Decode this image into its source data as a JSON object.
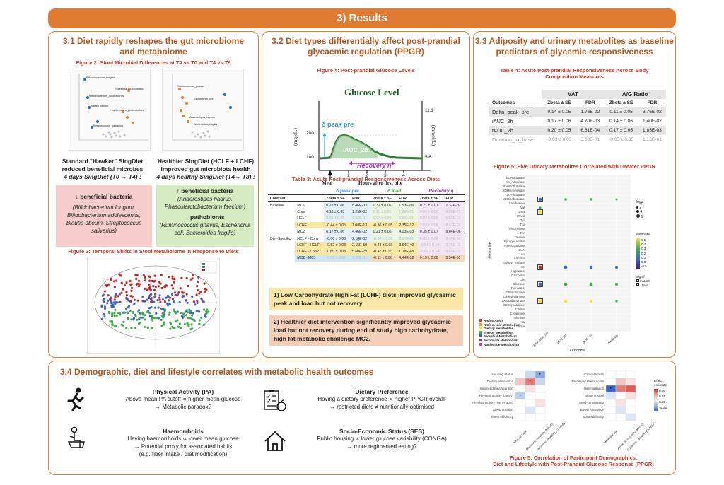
{
  "banner": {
    "title": "3) Results"
  },
  "s31": {
    "title_l1": "3.1 Diet rapidly reshapes the gut microbiome",
    "title_l2": "and metabolome",
    "fig2_title": "Figure 2: Stool Microbial Differences at T4 vs T0 and T4 vs T8",
    "left_heading_l1": "Standard \"Hawker\" SingDiet",
    "left_heading_l2": "reduced beneficial microbes",
    "left_heading_l3": "4 days SingDiet (T0 → T4) :",
    "right_heading_l1": "Healthier SingDiet (HCLF + LCHF)",
    "right_heading_l2": "improved gut microbiota health",
    "right_heading_l3": "4 days healthy SingDiet (T4→ T8) :",
    "red_box_head": "↓ beneficial bacteria",
    "red_box_body": "(Bifidobacterium longum, Bifidobacterium adolescentis, Blautia obeum, Streptococcus salivarius)",
    "green_box_head1": "↑ beneficial bacteria",
    "green_box_body1": "(Anaerostipes hadrus, Phascolarctobacterium faecium)",
    "green_box_head2": "↓ pathobionts",
    "green_box_body2": "(Ruminococcus gnavus, Escherichia coli, Bacteroides fragilis)",
    "fig3_title": "Figure 3: Temporal Shifts in Stool Metabolome in Response to Diets",
    "volcano_left_labels": [
      "Bifidobacterium_longum",
      "Roseburia_inulinivorans",
      "Bifidobacterium_adolescentis",
      "Blautia_obeum",
      "Lachnospira_pectinoschiza",
      "Streptococcus_salivarius"
    ],
    "volcano_right_labels": [
      "Ruminococcus_gnavus",
      "Escherichia_coli",
      "Anaerostipes_hadrus",
      "Bacteroides_fragilis"
    ]
  },
  "s32": {
    "title_l1": "3.2 Diet types differentially affect post-prandial",
    "title_l2": "glycaemic regulation (PPGR)",
    "fig4_title": "Figure 4: Post-prandial Glucose Levels",
    "glucose_title": "Glucose Level",
    "peak_label": "δ peak pre",
    "auc_label": "iAUC_2h",
    "recovery_label": "Recovery η",
    "y_left": "(mg/dL)",
    "y_right": "(mmol/L)",
    "y_ticks_left": [
      "200",
      "100"
    ],
    "y_ticks_right": [
      "11.1",
      "5.6"
    ],
    "x_ticks": [
      "1",
      "2",
      "3",
      "4"
    ],
    "meal_label": "Meal",
    "x_label": "Hours after first bite",
    "table3_title": "Table 3: Acute Post-prandial Responsiveness Across Diets",
    "table3_groups": [
      "δ peak pre",
      "δ load",
      "Recovery η"
    ],
    "table3_cols": [
      "Contrast",
      "",
      "Zbeta ± SE",
      "FDR",
      "Zbeta ± SE",
      "FDR",
      "Zbeta ± SE",
      "FDR"
    ],
    "table3_rows": [
      [
        "Baseline",
        "MC1",
        "0.22 ± 0.06",
        "5.46E-03",
        "0.32 ± 0.06",
        "1.53E-06",
        "0.21 ± 0.07",
        "1.37E-02"
      ],
      [
        "",
        "Conv",
        "0.16 ± 0.05",
        "1.25E-02",
        "0.11 ± 0.05",
        "1.89E-01",
        "0.04 ± 0.06",
        "8.86E-01"
      ],
      [
        "",
        "HCLF",
        "0.06 ± 0.05",
        "3.50E-01",
        "0.07 ± 0.05",
        "3.21E-01",
        "0.07 ± 0.06",
        "5.67E-01"
      ],
      [
        "",
        "LCHF",
        "-0.44 ± 0.05",
        "1.08E-13",
        "-0.36 ± 0.05",
        "2.35E-12",
        "0.03 ± 0.06",
        "8.67E-01"
      ],
      [
        "",
        "MC2",
        "0.17 ± 0.06",
        "4.46E-02",
        "0.21 ± 0.06",
        "4.03E-03",
        "0.35 ± 0.07",
        "9.64E-06"
      ],
      [
        "Diet-Specific",
        "HCLF - Conv",
        "-0.08 ± 0.03",
        "2.18E-02",
        "-0.04 ± 0.03",
        "2.17E-01",
        "0.03 ± 0.04",
        "3.42E-01"
      ],
      [
        "",
        "LCHF - HCLF",
        "-0.52 ± 0.03",
        "2.15E-59",
        "-0.43 ± 0.03",
        "3.64E-40",
        "-0.04 ± 0.04",
        "3.75E-01"
      ],
      [
        "",
        "LCHF - Conv",
        "-0.60 ± 0.03",
        "5.60E-79",
        "-0.47 ± 0.03",
        "1.18E-48",
        "-0.01 ± 0.04",
        "9.65E-01"
      ],
      [
        "",
        "MC2 - MC1",
        "-0.05 ± 0.04",
        "2.37E-01",
        "-0.11 ± 0.06",
        "4.44E-02",
        "0.13 ± 0.06",
        "3.54E-02"
      ]
    ],
    "callout1": "1) Low Carbohydrate High Fat (LCHF) diets improved glycaemic peak and load but not recovery.",
    "callout2": "2) Healthier diet intervention significantly improved glycaemic load but not recovery during end of study high carbohydrate, high fat metabolic challenge MC2."
  },
  "s33": {
    "title_l1": "3.3 Adiposity and urinary metabolites as baseline",
    "title_l2": "predictors of glycemic responsiveness",
    "table4_title_l1": "Table 4: Acute Post-prandial Responsiveness Across Body",
    "table4_title_l2": "Composition Measures",
    "table4_groups": [
      "VAT",
      "A/G Ratio"
    ],
    "table4_cols": [
      "Outcomes",
      "Zbeta ± SE",
      "FDR",
      "Zbeta ± SE",
      "FDR"
    ],
    "table4_rows": [
      [
        "Delta_peak_pre",
        "0.14 ± 0.05",
        "1.76E-02",
        "0.11 ± 0.05",
        "3.76E-02"
      ],
      [
        "iAUC_2h",
        "0.17 ± 0.06",
        "4.70E-03",
        "0.14 ± 0.06",
        "1.40E-02"
      ],
      [
        "tAUC_2h",
        "0.20 ± 0.05",
        "6.61E-04",
        "0.17 ± 0.05",
        "1.85E-03"
      ],
      [
        "Duration_to_base",
        "-0.03 ± 0.03",
        "3.03E-01",
        "-0.05 ± 0.03",
        "1.16E-01"
      ]
    ],
    "fig5_title": "Figure 5: Five Urinary Metabolites Correlated with Greater PPGR",
    "metabolites": [
      "bOHButyrate",
      "cis_Aconitate",
      "3OHIsobutyrate",
      "2OHisovalerate",
      "2OHbutyrate",
      "aOHisobutyrate",
      "Xanthosine",
      "Val",
      "Urea",
      "Uracil",
      "Tyr",
      "Trp",
      "Trigonelline",
      "Thr",
      "Taurine",
      "Pyroglutamate",
      "Pseudouridine",
      "NMA",
      "Leu",
      "Lactate",
      "Indoxyl_Sulfate",
      "Ile",
      "Hippurate",
      "Glycolate",
      "Gly",
      "Glucose",
      "Fumarate",
      "Ethanolamine",
      "Dimethylamine",
      "Deoxythreonate",
      "Deoxycarnitine",
      "Citrate",
      "Creatinine",
      "Alanine",
      "Ala",
      "Acetate"
    ],
    "outcomes": [
      "delta_peak_pre",
      "iAUC_2h",
      "tAUC_2h",
      "Recovery"
    ],
    "x_axis_label": "Outcome",
    "y_axis_label": "Metabolite",
    "legend_logp_title": "logp",
    "legend_logp": [
      "2",
      "4",
      "6"
    ],
    "legend_est_title": "estimate",
    "legend_est": [
      "0.5",
      "0.4",
      "0.3",
      "0.2",
      "0.1",
      "0.0",
      "-0.5"
    ],
    "legend_signif_title": "signif",
    "legend_signif": [
      "FALSE",
      "TRUE"
    ],
    "categories": [
      {
        "name": "Amino Acids",
        "color": "#e03a2f"
      },
      {
        "name": "Amino Acid Metabolism",
        "color": "#f29a2e"
      },
      {
        "name": "Dietary Metabolites",
        "color": "#f5e03a"
      },
      {
        "name": "Energy Metabolism",
        "color": "#41ad49"
      },
      {
        "name": "Microbial Metabolism",
        "color": "#3a66c8"
      },
      {
        "name": "Nicotinate Metabolism",
        "color": "#6b3aa8"
      },
      {
        "name": "Nucleotide Metabolism",
        "color": "#c43ab0"
      }
    ]
  },
  "s34": {
    "title": "3.4 Demographic, diet and lifestyle correlates with metabolic health outcomes",
    "pa_title": "Physical Activity (PA)",
    "pa_l1": "Above mean PA cutoff ∝ higher mean glucose",
    "pa_l2": "→ Metabolic paradox?",
    "haem_title": "Haemorrhoids",
    "haem_l1": "Having haemorrhoids ∝ lower mean glucose",
    "haem_l2": "→ Potential proxy for associated habits",
    "haem_l3": "(e.g. fiber intake / diet modification)",
    "diet_title": "Dietary Preference",
    "diet_l1": "Having a dietary preference ∝ higher PPGR overall",
    "diet_l2": "→ restricted diets ≠ nutritionally optimised",
    "ses_title": "Socio-Economic Status (SES)",
    "ses_l1": "Public housing ∝ lower glucose variability (CONGA)",
    "ses_l2": "→ more regimented eating?",
    "heat_left_rows": [
      "Housing Status",
      "Dietary preference",
      "Balanced meal/nutrition",
      "Physical activity (binary)",
      "Physical activity (MET-hours)",
      "Sleep duration",
      "Sleep efficiency"
    ],
    "heat_right_rows": [
      "Clinical stress",
      "Perceived stress score",
      "Haemorrhoids",
      "Blood in stool",
      "Stool consistency",
      "Bowel frequency",
      "Bowel difficulty"
    ],
    "heat_cols": [
      "Mean glucose",
      "Glycaemic variability (MAGE)",
      "Glycaemic variability (CONGA)"
    ],
    "heat_legend_title_l1": "Effect",
    "heat_legend_title_l2": "estimate",
    "heat_legend": [
      "0.50",
      "0.25",
      "0.00",
      "-0.25"
    ],
    "fig_caption_l1": "Figure 5: Correlation of Participant Demographics,",
    "fig_caption_l2": "Diet and Lifestyle with Post-Prandial Glucose Response  (PPGR)"
  }
}
